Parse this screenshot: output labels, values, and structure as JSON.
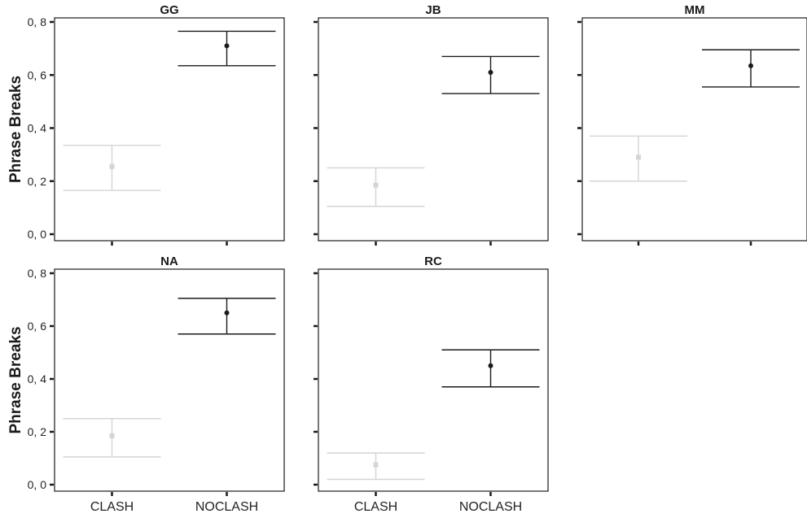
{
  "chart_data": {
    "type": "scatter",
    "subtype": "point-with-errorbar facets",
    "ylabel": "Phrase Breaks",
    "categories": [
      "CLASH",
      "NOCLASH"
    ],
    "y_ticks": [
      "0, 0",
      "0, 2",
      "0, 4",
      "0, 6",
      "0, 8"
    ],
    "ylim": [
      0.0,
      0.8
    ],
    "grid": false,
    "colors": {
      "CLASH": "#d4d4d4",
      "NOCLASH": "#1a1a1a"
    },
    "panels": [
      {
        "title": "GG",
        "points": [
          {
            "x": "CLASH",
            "y": 0.255,
            "lower": 0.165,
            "upper": 0.335
          },
          {
            "x": "NOCLASH",
            "y": 0.71,
            "lower": 0.635,
            "upper": 0.765
          }
        ]
      },
      {
        "title": "JB",
        "points": [
          {
            "x": "CLASH",
            "y": 0.185,
            "lower": 0.105,
            "upper": 0.25
          },
          {
            "x": "NOCLASH",
            "y": 0.61,
            "lower": 0.53,
            "upper": 0.67
          }
        ]
      },
      {
        "title": "MM",
        "points": [
          {
            "x": "CLASH",
            "y": 0.29,
            "lower": 0.2,
            "upper": 0.37
          },
          {
            "x": "NOCLASH",
            "y": 0.635,
            "lower": 0.555,
            "upper": 0.695
          }
        ]
      },
      {
        "title": "NA",
        "points": [
          {
            "x": "CLASH",
            "y": 0.185,
            "lower": 0.105,
            "upper": 0.25
          },
          {
            "x": "NOCLASH",
            "y": 0.65,
            "lower": 0.57,
            "upper": 0.705
          }
        ]
      },
      {
        "title": "RC",
        "points": [
          {
            "x": "CLASH",
            "y": 0.075,
            "lower": 0.02,
            "upper": 0.12
          },
          {
            "x": "NOCLASH",
            "y": 0.45,
            "lower": 0.37,
            "upper": 0.51
          }
        ]
      }
    ]
  }
}
